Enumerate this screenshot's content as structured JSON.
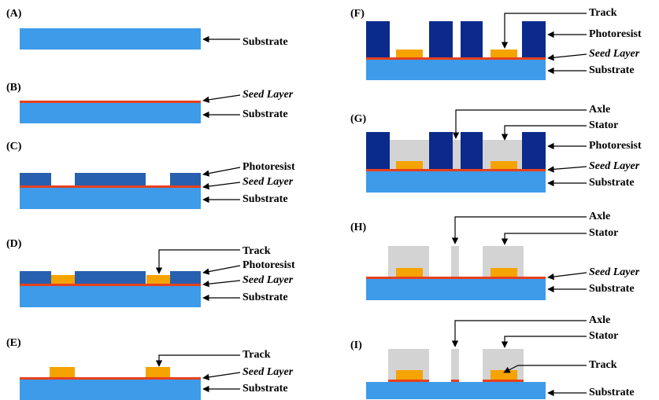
{
  "panels": [
    {
      "label": "(A)",
      "annotations": [
        "Substrate"
      ]
    },
    {
      "label": "(B)",
      "annotations": [
        "Seed Layer",
        "Substrate"
      ]
    },
    {
      "label": "(C)",
      "annotations": [
        "Photoresist",
        "Seed Layer",
        "Substrate"
      ]
    },
    {
      "label": "(D)",
      "annotations": [
        "Track",
        "Photoresist",
        "Seed Layer",
        "Substrate"
      ]
    },
    {
      "label": "(E)",
      "annotations": [
        "Track",
        "Seed Layer",
        "Substrate"
      ]
    },
    {
      "label": "(F)",
      "annotations": [
        "Track",
        "Photoresist",
        "Seed Layer",
        "Substrate"
      ]
    },
    {
      "label": "(G)",
      "annotations": [
        "Axle",
        "Stator",
        "Photoresist",
        "Seed Layer",
        "Substrate"
      ]
    },
    {
      "label": "(H)",
      "annotations": [
        "Axle",
        "Stator",
        "Seed Layer",
        "Substrate"
      ]
    },
    {
      "label": "(I)",
      "annotations": [
        "Axle",
        "Stator",
        "Track",
        "Substrate"
      ]
    }
  ]
}
